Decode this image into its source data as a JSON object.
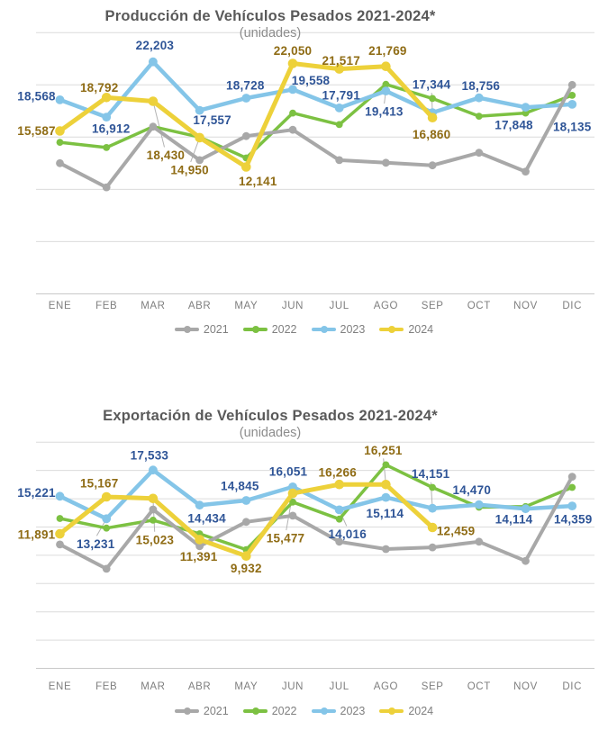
{
  "page_background": "#ffffff",
  "text_colors": {
    "title": "#595959",
    "subtitle": "#8c8c8c",
    "axis": "#7f7f7f",
    "label_2023": "#2f5597",
    "label_2024": "#8f6c15"
  },
  "chart_data": [
    {
      "type": "line",
      "title": "Producción de Vehículos Pesados 2021-2024*",
      "subtitle": "(unidades)",
      "categories": [
        "ENE",
        "FEB",
        "MAR",
        "ABR",
        "MAY",
        "JUN",
        "JUL",
        "AGO",
        "SEP",
        "OCT",
        "NOV",
        "DIC"
      ],
      "y_axis": {
        "min": 0,
        "max": 25000,
        "gridline_step": 5000,
        "tick_labels_visible": false,
        "grid": true
      },
      "legend_position": "bottom",
      "series": [
        {
          "name": "2021",
          "color": "#a8a8a8",
          "values_estimated_from_plot": true,
          "values": [
            12500,
            10200,
            16000,
            12800,
            15100,
            15700,
            12800,
            12550,
            12300,
            13500,
            11700,
            20000
          ],
          "labels": [
            null,
            null,
            null,
            null,
            null,
            null,
            null,
            null,
            null,
            null,
            null,
            null
          ]
        },
        {
          "name": "2022",
          "color": "#7cc142",
          "values_estimated_from_plot": true,
          "values": [
            14500,
            14000,
            16000,
            15000,
            13000,
            17300,
            16200,
            20050,
            18700,
            17000,
            17300,
            19000
          ],
          "labels": [
            null,
            null,
            null,
            null,
            null,
            null,
            null,
            null,
            null,
            null,
            null,
            null
          ]
        },
        {
          "name": "2023",
          "color": "#84c5e8",
          "label_color": "#2f5597",
          "values": [
            18568,
            16912,
            22203,
            17557,
            18728,
            19558,
            17791,
            19413,
            17344,
            18756,
            17848,
            18135
          ],
          "labels": [
            {
              "text": "18,568",
              "dx": -26,
              "dy": -4
            },
            {
              "text": "16,912",
              "dx": 5,
              "dy": 13
            },
            {
              "text": "22,203",
              "dx": 2,
              "dy": -18
            },
            {
              "text": "17,557",
              "dx": 14,
              "dy": 11
            },
            {
              "text": "18,728",
              "dx": -1,
              "dy": -14
            },
            {
              "text": "19,558",
              "dx": 20,
              "dy": -10
            },
            {
              "text": "17,791",
              "dx": 2,
              "dy": -14
            },
            {
              "text": "19,413",
              "dx": -2,
              "dy": 23,
              "leader": true
            },
            {
              "text": "17,344",
              "dx": -1,
              "dy": -31,
              "leader": true
            },
            {
              "text": "18,756",
              "dx": 2,
              "dy": -13
            },
            {
              "text": "17,848",
              "dx": -13,
              "dy": 20
            },
            {
              "text": "18,135",
              "dx": 0,
              "dy": 25
            }
          ]
        },
        {
          "name": "2024",
          "color": "#edd13a",
          "label_color": "#8f6c15",
          "values": [
            15587,
            18792,
            18430,
            14950,
            12141,
            22050,
            21517,
            21769,
            16860,
            null,
            null,
            null
          ],
          "labels": [
            {
              "text": "15,587",
              "dx": -26,
              "dy": 0
            },
            {
              "text": "18,792",
              "dx": -8,
              "dy": -11
            },
            {
              "text": "18,430",
              "dx": 14,
              "dy": 60,
              "leader": true
            },
            {
              "text": "14,950",
              "dx": -11,
              "dy": 36,
              "leader": true
            },
            {
              "text": "12,141",
              "dx": 13,
              "dy": 16
            },
            {
              "text": "22,050",
              "dx": 0,
              "dy": -14
            },
            {
              "text": "21,517",
              "dx": 2,
              "dy": -9
            },
            {
              "text": "21,769",
              "dx": 2,
              "dy": -17
            },
            {
              "text": "16,860",
              "dx": -1,
              "dy": 19
            },
            null,
            null,
            null
          ]
        }
      ]
    },
    {
      "type": "line",
      "title": "Exportación de Vehículos Pesados 2021-2024*",
      "subtitle": "(unidades)",
      "categories": [
        "ENE",
        "FEB",
        "MAR",
        "ABR",
        "MAY",
        "JUN",
        "JUL",
        "AGO",
        "SEP",
        "OCT",
        "NOV",
        "DIC"
      ],
      "y_axis": {
        "min": 0,
        "max": 20000,
        "gridline_step": 2500,
        "tick_labels_visible": false,
        "grid": true
      },
      "legend_position": "bottom",
      "series": [
        {
          "name": "2021",
          "color": "#a8a8a8",
          "values_estimated_from_plot": true,
          "values": [
            10950,
            8800,
            14050,
            10800,
            12950,
            13500,
            11200,
            10550,
            10700,
            11200,
            9500,
            16950
          ],
          "labels": [
            null,
            null,
            null,
            null,
            null,
            null,
            null,
            null,
            null,
            null,
            null,
            null
          ]
        },
        {
          "name": "2022",
          "color": "#7cc142",
          "values_estimated_from_plot": true,
          "values": [
            13250,
            12400,
            13100,
            11900,
            10500,
            14700,
            13200,
            18000,
            16000,
            14250,
            14300,
            16000
          ],
          "labels": [
            null,
            null,
            null,
            null,
            null,
            null,
            null,
            null,
            null,
            null,
            null,
            null
          ]
        },
        {
          "name": "2023",
          "color": "#84c5e8",
          "label_color": "#2f5597",
          "values": [
            15221,
            13231,
            17533,
            14434,
            14845,
            16051,
            14016,
            15114,
            14151,
            14470,
            14114,
            14359
          ],
          "labels": [
            {
              "text": "15,221",
              "dx": -26,
              "dy": -4
            },
            {
              "text": "13,231",
              "dx": -12,
              "dy": 28,
              "leader": true
            },
            {
              "text": "17,533",
              "dx": -4,
              "dy": -16
            },
            {
              "text": "14,434",
              "dx": 8,
              "dy": 15
            },
            {
              "text": "14,845",
              "dx": -7,
              "dy": -16
            },
            {
              "text": "16,051",
              "dx": -5,
              "dy": -17
            },
            {
              "text": "14,016",
              "dx": 9,
              "dy": 27,
              "leader": true
            },
            {
              "text": "15,114",
              "dx": -1,
              "dy": 18
            },
            {
              "text": "14,151",
              "dx": -2,
              "dy": -38,
              "leader": true
            },
            {
              "text": "14,470",
              "dx": -8,
              "dy": -16
            },
            {
              "text": "14,114",
              "dx": -13,
              "dy": 12
            },
            {
              "text": "14,359",
              "dx": 1,
              "dy": 15
            }
          ]
        },
        {
          "name": "2024",
          "color": "#edd13a",
          "label_color": "#8f6c15",
          "values": [
            11891,
            15167,
            15023,
            11391,
            9932,
            15477,
            16266,
            16251,
            12459,
            null,
            null,
            null
          ],
          "labels": [
            {
              "text": "11,891",
              "dx": -26,
              "dy": 1
            },
            {
              "text": "15,167",
              "dx": -8,
              "dy": -15
            },
            {
              "text": "15,023",
              "dx": 2,
              "dy": 46,
              "leader": true
            },
            {
              "text": "11,391",
              "dx": -1,
              "dy": 19
            },
            {
              "text": "9,932",
              "dx": 0,
              "dy": 14
            },
            {
              "text": "15,477",
              "dx": -8,
              "dy": 50,
              "leader": true
            },
            {
              "text": "16,266",
              "dx": -2,
              "dy": -13
            },
            {
              "text": "16,251",
              "dx": -3,
              "dy": -38,
              "leader": true
            },
            {
              "text": "12,459",
              "dx": 26,
              "dy": 4
            },
            null,
            null,
            null
          ]
        }
      ]
    }
  ]
}
